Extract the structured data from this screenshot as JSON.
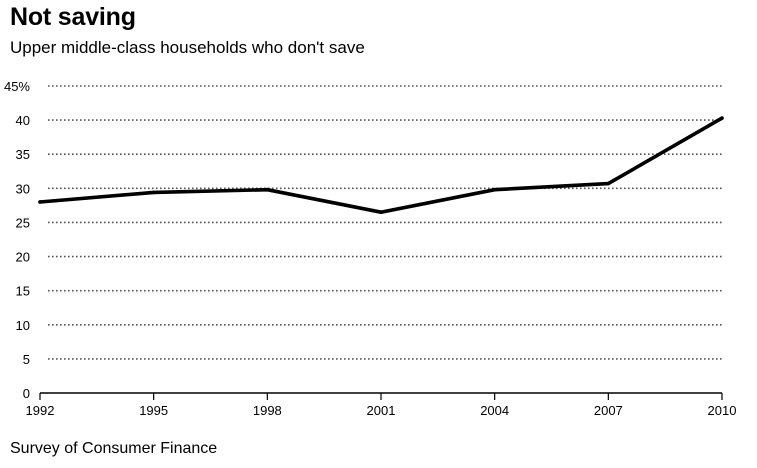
{
  "title": "Not saving",
  "subtitle": "Upper middle-class households who don't save",
  "source": "Survey of Consumer Finance",
  "chart_data": {
    "type": "line",
    "title": "Not saving",
    "subtitle": "Upper middle-class households who don't save",
    "xlabel": "",
    "ylabel": "",
    "x": [
      1992,
      1995,
      1998,
      2001,
      2004,
      2007,
      2010
    ],
    "series": [
      {
        "values": [
          28.0,
          29.4,
          29.8,
          26.5,
          29.8,
          30.7,
          40.3
        ]
      }
    ],
    "ylim": [
      0,
      45
    ],
    "xlim": [
      1992,
      2010
    ],
    "yticks": [
      0,
      5,
      10,
      15,
      20,
      25,
      30,
      35,
      40,
      45
    ],
    "ytick_labels": [
      "0",
      "5",
      "10",
      "15",
      "20",
      "25",
      "30",
      "35",
      "40",
      "45%"
    ],
    "xticks": [
      1992,
      1995,
      1998,
      2001,
      2004,
      2007,
      2010
    ],
    "xtick_labels": [
      "1992",
      "1995",
      "1998",
      "2001",
      "2004",
      "2007",
      "2010"
    ],
    "grid": true,
    "line_color": "#000000",
    "grid_color": "#555555"
  }
}
